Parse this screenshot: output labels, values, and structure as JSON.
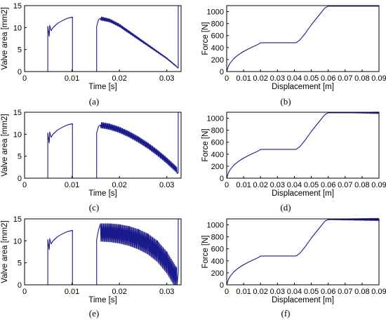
{
  "panel_labels": [
    "(a)",
    "(b)",
    "(c)",
    "(d)",
    "(e)",
    "(f)"
  ],
  "colors": {
    "series": "#1a1a8c",
    "axis": "#000000",
    "grid": "#d9d9d9"
  },
  "chart_data": [
    {
      "type": "line",
      "panel": "(a)",
      "xlabel": "Time [s]",
      "ylabel": "Valve area [mm2]",
      "xlim": [
        0,
        0.033
      ],
      "ylim": [
        0,
        15
      ],
      "xticks": [
        0,
        0.01,
        0.02,
        0.03
      ],
      "yticks": [
        0,
        5,
        10,
        15
      ],
      "grid": false,
      "series": [
        {
          "x": [
            0,
            0.0049,
            0.0049,
            0.0052,
            0.0053,
            0.0056,
            0.006,
            0.007,
            0.008,
            0.009,
            0.0101,
            0.0101,
            0.0152,
            0.0152,
            0.0156,
            0.016,
            0.018,
            0.02,
            0.022,
            0.024,
            0.026,
            0.028,
            0.03,
            0.032,
            0.0324,
            0.0324,
            0.033
          ],
          "y": [
            0,
            0,
            10.3,
            8.0,
            10.5,
            9.3,
            10.0,
            11.0,
            11.6,
            12.1,
            12.4,
            0,
            0,
            10.3,
            11.8,
            12.1,
            11.6,
            10.5,
            9.0,
            7.5,
            6.0,
            4.5,
            3.0,
            1.2,
            0.8,
            15,
            15
          ]
        }
      ],
      "oscillation": {
        "x_start": 0.016,
        "x_end": 0.0322,
        "amplitude_start": 0.8,
        "amplitude_end": 0.2,
        "period": 0.00022,
        "profile": "even"
      }
    },
    {
      "type": "line",
      "panel": "(b)",
      "xlabel": "Displacement [m]",
      "ylabel": "Force [N]",
      "xlim": [
        0,
        0.09
      ],
      "ylim": [
        0,
        1100
      ],
      "xticks": [
        0,
        0.01,
        0.02,
        0.03,
        0.04,
        0.05,
        0.06,
        0.07,
        0.08,
        0.09
      ],
      "yticks": [
        0,
        200,
        400,
        600,
        800,
        1000
      ],
      "grid": false,
      "series": [
        {
          "x": [
            0,
            0.001,
            0.002,
            0.004,
            0.006,
            0.008,
            0.01,
            0.013,
            0.016,
            0.019,
            0.02,
            0.041,
            0.043,
            0.046,
            0.05,
            0.054,
            0.058,
            0.06,
            0.09
          ],
          "y": [
            0,
            90,
            140,
            210,
            260,
            300,
            335,
            380,
            420,
            460,
            480,
            480,
            520,
            620,
            780,
            920,
            1060,
            1090,
            1090
          ]
        }
      ],
      "oscillation": null
    },
    {
      "type": "line",
      "panel": "(c)",
      "xlabel": "Time [s]",
      "ylabel": "Valve area [mm2]",
      "xlim": [
        0,
        0.033
      ],
      "ylim": [
        0,
        15
      ],
      "xticks": [
        0,
        0.01,
        0.02,
        0.03
      ],
      "yticks": [
        0,
        5,
        10,
        15
      ],
      "grid": false,
      "series": [
        {
          "x": [
            0,
            0.0049,
            0.0049,
            0.0052,
            0.0053,
            0.0056,
            0.006,
            0.007,
            0.008,
            0.009,
            0.0101,
            0.0101,
            0.0152,
            0.0152,
            0.0156,
            0.016,
            0.018,
            0.02,
            0.022,
            0.024,
            0.026,
            0.028,
            0.03,
            0.032,
            0.0324,
            0.0324,
            0.033
          ],
          "y": [
            0,
            0,
            10.3,
            8.0,
            10.5,
            9.3,
            10.0,
            11.0,
            11.6,
            12.1,
            12.4,
            0,
            0,
            10.3,
            11.8,
            12.1,
            11.7,
            11.0,
            10.0,
            8.8,
            7.4,
            5.8,
            4.0,
            2.0,
            1.3,
            15,
            15
          ]
        }
      ],
      "oscillation": {
        "x_start": 0.016,
        "x_end": 0.0322,
        "amplitude_start": 1.3,
        "amplitude_end": 1.3,
        "period": 0.00022,
        "profile": "even"
      }
    },
    {
      "type": "line",
      "panel": "(d)",
      "xlabel": "Displacement [m]",
      "ylabel": "Force [N]",
      "xlim": [
        0,
        0.09
      ],
      "ylim": [
        0,
        1100
      ],
      "xticks": [
        0,
        0.01,
        0.02,
        0.03,
        0.04,
        0.05,
        0.06,
        0.07,
        0.08,
        0.09
      ],
      "yticks": [
        0,
        200,
        400,
        600,
        800,
        1000
      ],
      "grid": false,
      "series": [
        {
          "x": [
            0,
            0.001,
            0.002,
            0.004,
            0.006,
            0.008,
            0.01,
            0.013,
            0.016,
            0.019,
            0.02,
            0.041,
            0.043,
            0.046,
            0.05,
            0.054,
            0.058,
            0.06,
            0.09
          ],
          "y": [
            0,
            90,
            140,
            210,
            260,
            300,
            335,
            380,
            420,
            460,
            480,
            480,
            520,
            620,
            780,
            920,
            1060,
            1090,
            1090
          ]
        }
      ],
      "oscillation": {
        "x_start": 0.075,
        "x_end": 0.09,
        "amplitude_start": 2,
        "amplitude_end": 30,
        "period": 0.0007,
        "profile": "even"
      }
    },
    {
      "type": "line",
      "panel": "(e)",
      "xlabel": "Time [s]",
      "ylabel": "Valve area [mm2]",
      "xlim": [
        0,
        0.033
      ],
      "ylim": [
        0,
        15
      ],
      "xticks": [
        0,
        0.01,
        0.02,
        0.03
      ],
      "yticks": [
        0,
        5,
        10,
        15
      ],
      "grid": false,
      "series": [
        {
          "x": [
            0,
            0.0049,
            0.0049,
            0.0052,
            0.0053,
            0.0056,
            0.006,
            0.007,
            0.008,
            0.009,
            0.0101,
            0.0101,
            0.0152,
            0.0152,
            0.0156,
            0.016,
            0.018,
            0.02,
            0.022,
            0.024,
            0.026,
            0.028,
            0.03,
            0.032,
            0.0324,
            0.0324,
            0.033
          ],
          "y": [
            0,
            0,
            10.3,
            8.0,
            10.5,
            9.3,
            10.0,
            11.0,
            11.6,
            12.1,
            12.4,
            0,
            0,
            10.3,
            12.5,
            13.9,
            13.9,
            13.7,
            13.3,
            12.6,
            11.6,
            10.0,
            7.5,
            4.0,
            2.8,
            15,
            15
          ]
        }
      ],
      "oscillation": {
        "x_start": 0.016,
        "x_end": 0.0322,
        "amplitude_start": 4.0,
        "amplitude_end": 5.0,
        "period": 0.00022,
        "profile": "down"
      }
    },
    {
      "type": "line",
      "panel": "(f)",
      "xlabel": "Displacement [m]",
      "ylabel": "Force [N]",
      "xlim": [
        0,
        0.09
      ],
      "ylim": [
        0,
        1100
      ],
      "xticks": [
        0,
        0.01,
        0.02,
        0.03,
        0.04,
        0.05,
        0.06,
        0.07,
        0.08,
        0.09
      ],
      "yticks": [
        0,
        200,
        400,
        600,
        800,
        1000
      ],
      "grid": false,
      "series": [
        {
          "x": [
            0,
            0.001,
            0.002,
            0.004,
            0.006,
            0.008,
            0.01,
            0.013,
            0.016,
            0.019,
            0.02,
            0.041,
            0.043,
            0.046,
            0.05,
            0.054,
            0.058,
            0.06,
            0.09
          ],
          "y": [
            0,
            90,
            140,
            210,
            260,
            300,
            335,
            380,
            420,
            460,
            480,
            480,
            520,
            620,
            780,
            920,
            1060,
            1090,
            1090
          ]
        }
      ],
      "oscillation": {
        "x_start": 0.06,
        "x_end": 0.09,
        "amplitude_start": 8,
        "amplitude_end": 40,
        "period": 0.0006,
        "profile": "even"
      }
    }
  ]
}
